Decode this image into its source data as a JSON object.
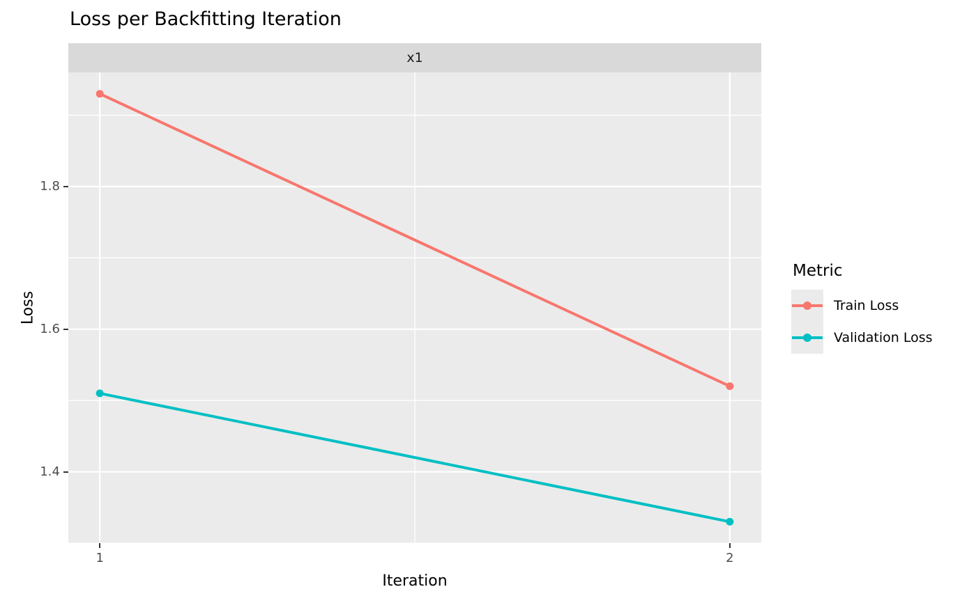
{
  "title": "Loss per Backfitting Iteration",
  "facet_label": "x1",
  "chart_data": {
    "type": "line",
    "title": "Loss per Backfitting Iteration",
    "facet_label": "x1",
    "xlabel": "Iteration",
    "ylabel": "Loss",
    "x": [
      1,
      2
    ],
    "series": [
      {
        "name": "Train Loss",
        "color": "#F8766D",
        "values": [
          1.93,
          1.52
        ]
      },
      {
        "name": "Validation Loss",
        "color": "#00BFC4",
        "values": [
          1.51,
          1.33
        ]
      }
    ],
    "xlim": [
      0.95,
      2.05
    ],
    "ylim": [
      1.3,
      1.96
    ],
    "xticks": [
      1,
      2
    ],
    "xtick_labels": [
      "1",
      "2"
    ],
    "yticks": [
      1.4,
      1.6,
      1.8
    ],
    "ytick_labels": [
      "1.4",
      "1.6",
      "1.8"
    ],
    "x_minor": [
      1.5
    ],
    "y_minor": [
      1.3,
      1.5,
      1.7,
      1.9
    ],
    "grid": true,
    "legend_title": "Metric",
    "legend_position": "right"
  },
  "colors": {
    "background": "#FFFFFF",
    "panel_bg": "#EBEBEB",
    "strip_bg": "#D9D9D9",
    "gridline": "#FFFFFF",
    "tick_mark": "#333333",
    "tick_text": "#4D4D4D",
    "train": "#F8766D",
    "validation": "#00BFC4"
  }
}
